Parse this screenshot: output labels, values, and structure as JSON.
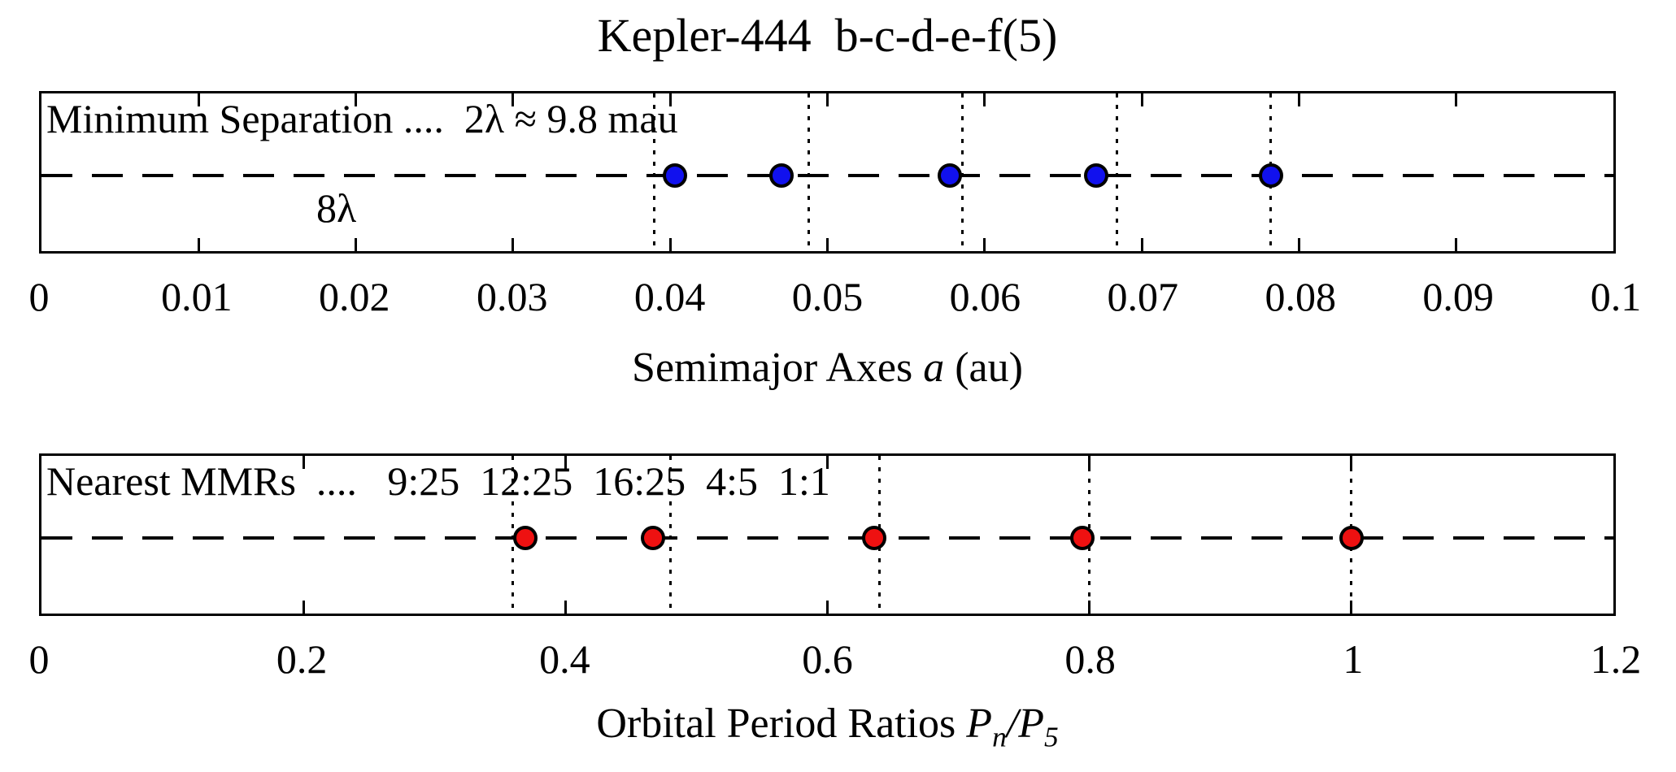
{
  "title": "Kepler-444  b-c-d-e-f(5)",
  "chart_data": [
    {
      "type": "scatter",
      "panel": "semimajor-axes",
      "annotation": "Minimum Separation ....  2λ ≈ 9.8 mau",
      "annotation_secondary": "8λ",
      "xlabel": {
        "text": "Semimajor Axes ",
        "math": "a",
        "unit": " (au)"
      },
      "xlim": [
        0,
        0.1
      ],
      "x": [
        0.0403,
        0.0471,
        0.0578,
        0.0671,
        0.0782
      ],
      "vlines": [
        0.039,
        0.0488,
        0.0586,
        0.0684,
        0.0782
      ],
      "xticks": [
        0,
        0.01,
        0.02,
        0.03,
        0.04,
        0.05,
        0.06,
        0.07,
        0.08,
        0.09,
        0.1
      ],
      "xtick_labels": [
        "0",
        "0.01",
        "0.02",
        "0.03",
        "0.04",
        "0.05",
        "0.06",
        "0.07",
        "0.08",
        "0.09",
        "0.1"
      ],
      "marker_color": "#1111ee",
      "marker_edge": "#000000",
      "line_style": "dashed-horizontal-midline",
      "guide_style": "dotted-vertical",
      "grid": false
    },
    {
      "type": "scatter",
      "panel": "orbital-period-ratios",
      "annotation": "Nearest MMRs  ....   9:25  12:25  16:25  4:5  1:1",
      "mmr_labels": [
        "9:25",
        "12:25",
        "16:25",
        "4:5",
        "1:1"
      ],
      "xlabel": {
        "text": "Orbital Period Ratios ",
        "p1": "P",
        "sub1": "n",
        "sep": "/",
        "p2": "P",
        "sub2": "5"
      },
      "xlim": [
        0,
        1.2
      ],
      "x": [
        0.3696,
        0.4667,
        0.6354,
        0.7949,
        1.0
      ],
      "vlines": [
        0.36,
        0.48,
        0.64,
        0.8,
        1.0
      ],
      "xticks": [
        0,
        0.2,
        0.4,
        0.6,
        0.8,
        1,
        1.2
      ],
      "xtick_labels": [
        "0",
        "0.2",
        "0.4",
        "0.6",
        "0.8",
        "1",
        "1.2"
      ],
      "marker_color": "#ee1111",
      "marker_edge": "#000000",
      "line_style": "dashed-horizontal-midline",
      "guide_style": "dotted-vertical",
      "grid": false
    }
  ]
}
